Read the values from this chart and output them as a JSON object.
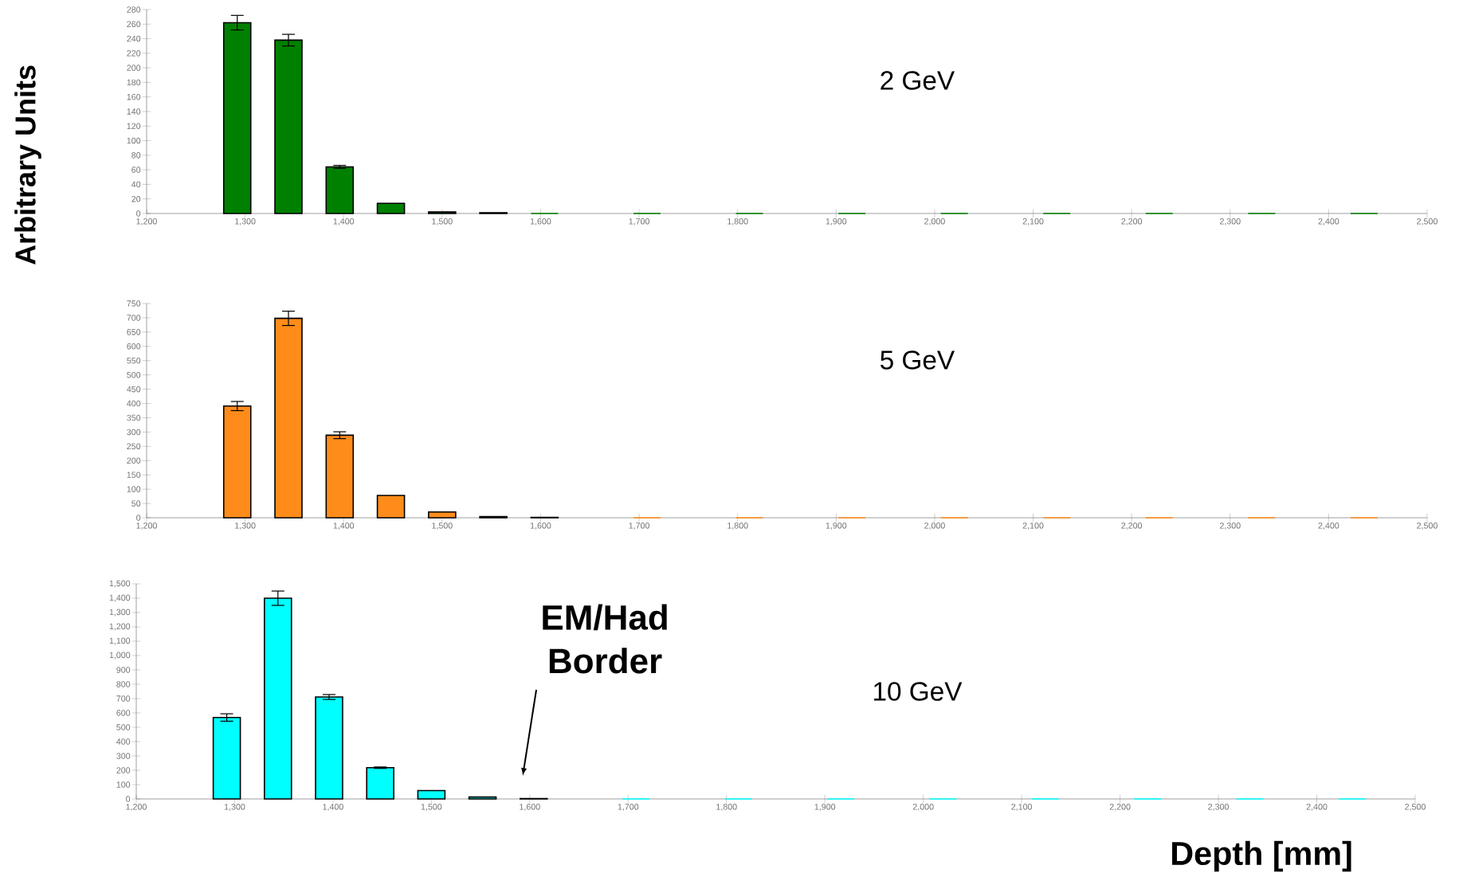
{
  "chart_data": [
    {
      "type": "bar",
      "ylabel": "Arbitrary Units",
      "color": "#008000",
      "x": [
        1292,
        1344,
        1396,
        1448,
        1500,
        1552,
        1604,
        1708,
        1812,
        1916,
        2020,
        2124,
        2228,
        2332,
        2436
      ],
      "values": [
        262,
        238,
        64,
        14,
        2,
        1,
        0,
        0,
        0,
        0,
        0,
        0,
        0,
        0,
        0
      ],
      "errors": [
        10,
        8,
        2,
        null,
        null,
        null,
        null,
        null,
        null,
        null,
        null,
        null,
        null,
        null,
        null
      ],
      "xlim": [
        1200,
        2500
      ],
      "xticks": [
        {
          "value": 1200,
          "label": "1,200"
        },
        {
          "value": 1300,
          "label": "1,300"
        },
        {
          "value": 1400,
          "label": "1,400"
        },
        {
          "value": 1500,
          "label": "1,500"
        },
        {
          "value": 1600,
          "label": "1,600"
        },
        {
          "value": 1700,
          "label": "1,700"
        },
        {
          "value": 1800,
          "label": "1,800"
        },
        {
          "value": 1900,
          "label": "1,900"
        },
        {
          "value": 2000,
          "label": "2,000"
        },
        {
          "value": 2100,
          "label": "2,100"
        },
        {
          "value": 2200,
          "label": "2,200"
        },
        {
          "value": 2300,
          "label": "2,300"
        },
        {
          "value": 2400,
          "label": "2,400"
        },
        {
          "value": 2500,
          "label": "2,500"
        }
      ],
      "ylim": [
        0,
        280
      ],
      "yticks": [
        0,
        20,
        40,
        60,
        80,
        100,
        120,
        140,
        160,
        180,
        200,
        220,
        240,
        260,
        280
      ],
      "annotations": [
        "2 GeV"
      ]
    },
    {
      "type": "bar",
      "color": "#ff8c1a",
      "x": [
        1292,
        1344,
        1396,
        1448,
        1500,
        1552,
        1604,
        1708,
        1812,
        1916,
        2020,
        2124,
        2228,
        2332,
        2436
      ],
      "values": [
        391,
        698,
        289,
        78,
        20,
        4,
        1,
        0,
        0,
        0,
        0,
        0,
        0,
        0,
        0
      ],
      "errors": [
        16,
        25,
        12,
        null,
        null,
        null,
        null,
        null,
        null,
        null,
        null,
        null,
        null,
        null,
        null
      ],
      "xlim": [
        1200,
        2500
      ],
      "xticks": [
        {
          "value": 1200,
          "label": "1,200"
        },
        {
          "value": 1300,
          "label": "1,300"
        },
        {
          "value": 1400,
          "label": "1,400"
        },
        {
          "value": 1500,
          "label": "1,500"
        },
        {
          "value": 1600,
          "label": "1,600"
        },
        {
          "value": 1700,
          "label": "1,700"
        },
        {
          "value": 1800,
          "label": "1,800"
        },
        {
          "value": 1900,
          "label": "1,900"
        },
        {
          "value": 2000,
          "label": "2,000"
        },
        {
          "value": 2100,
          "label": "2,100"
        },
        {
          "value": 2200,
          "label": "2,200"
        },
        {
          "value": 2300,
          "label": "2,300"
        },
        {
          "value": 2400,
          "label": "2,400"
        },
        {
          "value": 2500,
          "label": "2,500"
        }
      ],
      "ylim": [
        0,
        750
      ],
      "yticks": [
        0,
        50,
        100,
        150,
        200,
        250,
        300,
        350,
        400,
        450,
        500,
        550,
        600,
        650,
        700,
        750
      ],
      "annotations": [
        "5 GeV"
      ]
    },
    {
      "type": "bar",
      "xlabel": "Depth [mm]",
      "color": "#00ffff",
      "x": [
        1292,
        1344,
        1396,
        1448,
        1500,
        1552,
        1604,
        1708,
        1812,
        1916,
        2020,
        2124,
        2228,
        2332,
        2436
      ],
      "values": [
        568,
        1400,
        711,
        218,
        58,
        13,
        2,
        0,
        0,
        0,
        0,
        0,
        0,
        0,
        0
      ],
      "errors": [
        26,
        50,
        17,
        5,
        null,
        null,
        null,
        null,
        null,
        null,
        null,
        null,
        null,
        null,
        null
      ],
      "xlim": [
        1200,
        2500
      ],
      "xticks": [
        {
          "value": 1200,
          "label": "1,200"
        },
        {
          "value": 1300,
          "label": "1,300"
        },
        {
          "value": 1400,
          "label": "1,400"
        },
        {
          "value": 1500,
          "label": "1,500"
        },
        {
          "value": 1600,
          "label": "1,600"
        },
        {
          "value": 1700,
          "label": "1,700"
        },
        {
          "value": 1800,
          "label": "1,800"
        },
        {
          "value": 1900,
          "label": "1,900"
        },
        {
          "value": 2000,
          "label": "2,000"
        },
        {
          "value": 2100,
          "label": "2,100"
        },
        {
          "value": 2200,
          "label": "2,200"
        },
        {
          "value": 2300,
          "label": "2,300"
        },
        {
          "value": 2400,
          "label": "2,400"
        },
        {
          "value": 2500,
          "label": "2,500"
        }
      ],
      "ylim": [
        0,
        1500
      ],
      "yticks": [
        0,
        100,
        200,
        300,
        400,
        500,
        600,
        700,
        800,
        900,
        {
          "value": 1000,
          "label": "1,000"
        },
        {
          "value": 1100,
          "label": "1,100"
        },
        {
          "value": 1200,
          "label": "1,200"
        },
        {
          "value": 1300,
          "label": "1,300"
        },
        {
          "value": 1400,
          "label": "1,400"
        },
        {
          "value": 1500,
          "label": "1,500"
        }
      ],
      "annotations": [
        "10 GeV",
        "EM/Had Border"
      ]
    }
  ]
}
